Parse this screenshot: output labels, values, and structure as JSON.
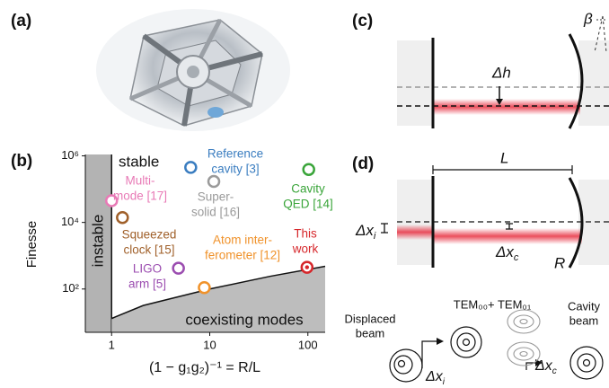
{
  "panel_labels": [
    "(a)",
    "(b)",
    "(c)",
    "(d)"
  ],
  "chart_data": {
    "type": "scatter",
    "xlabel": "(1 − g₁g₂)⁻¹ = R/L",
    "ylabel": "Finesse",
    "x_log": true,
    "y_log": true,
    "xlim": [
      0.54,
      150
    ],
    "ylim": [
      5,
      1100000
    ],
    "xticks": [
      1,
      10,
      100
    ],
    "yticks": [
      {
        "value": 100,
        "label": "10²"
      },
      {
        "value": 10000,
        "label": "10⁴"
      },
      {
        "value": 1000000,
        "label": "10⁶"
      }
    ],
    "stable_label": "stable",
    "instable_region": {
      "label": "instable",
      "x_max": 1,
      "color": "#b3b3b3"
    },
    "coexisting_region": {
      "label": "coexisting modes",
      "color": "#bdbdbd",
      "x": [
        1,
        2.1,
        10,
        41,
        150
      ],
      "y": [
        13,
        32,
        100,
        240,
        480
      ]
    },
    "points": [
      {
        "label": [
          "Reference",
          "cavity [3]"
        ],
        "color": "#3a7dc0",
        "x": 6.4,
        "y": 450000
      },
      {
        "label": [
          "Super-",
          "solid [16]"
        ],
        "color": "#9a9a9a",
        "x": 11,
        "y": 170000
      },
      {
        "label": [
          "Cavity",
          "QED [14]"
        ],
        "color": "#3aa53a",
        "x": 102,
        "y": 390000
      },
      {
        "label": [
          "Multi-",
          "mode [17]"
        ],
        "color": "#e87ab6",
        "x": 1,
        "y": 45000
      },
      {
        "label": [
          "Squeezed",
          "clock [15]"
        ],
        "color": "#a0602a",
        "x": 1.29,
        "y": 14000
      },
      {
        "label": [
          "LIGO",
          "arm [5]"
        ],
        "color": "#9b4db0",
        "x": 4.8,
        "y": 420
      },
      {
        "label": [
          "Atom inter-",
          "ferometer [12]"
        ],
        "color": "#f0922a",
        "x": 8.8,
        "y": 110
      },
      {
        "label": [
          "This",
          "work"
        ],
        "color": "#d6262a",
        "x": 98,
        "y": 450,
        "highlight": true
      }
    ]
  },
  "panel_c": {
    "delta_h": "Δh",
    "beta": "β"
  },
  "panel_d": {
    "length": "L",
    "radius": "R",
    "delta_x_i": {
      "main": "Δx",
      "sub": "i"
    },
    "delta_x_c": {
      "main": "Δx",
      "sub": "c"
    },
    "displaced_beam": [
      "Displaced",
      "beam"
    ],
    "tem": "TEM₀₀+ TEM₀₁",
    "cavity_beam": [
      "Cavity",
      "beam"
    ]
  }
}
